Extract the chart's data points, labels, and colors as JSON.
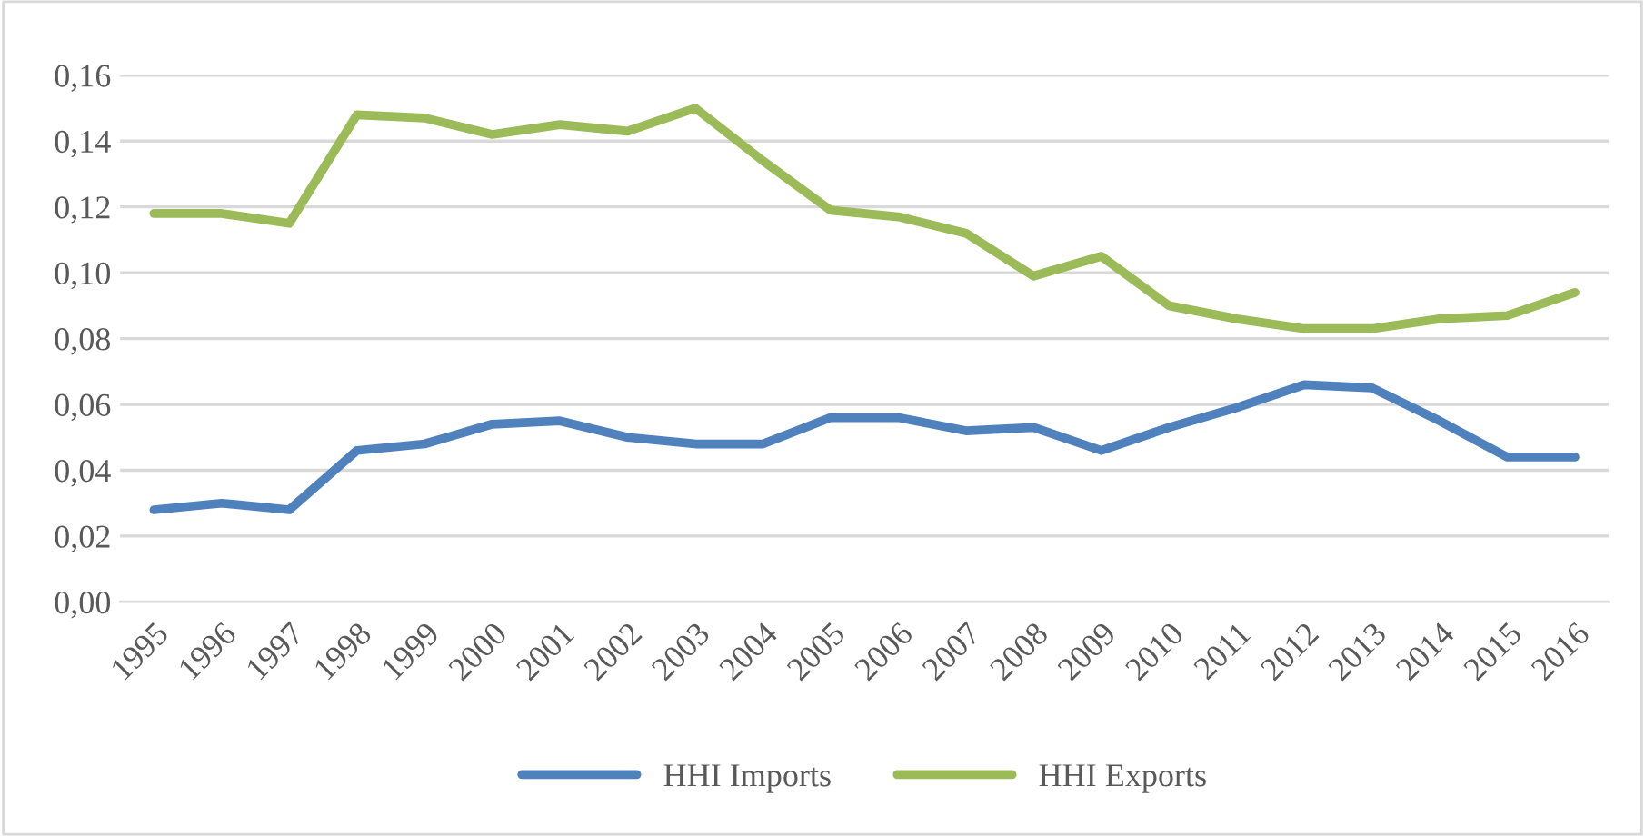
{
  "chart_data": {
    "type": "line",
    "categories": [
      "1995",
      "1996",
      "1997",
      "1998",
      "1999",
      "2000",
      "2001",
      "2002",
      "2003",
      "2004",
      "2005",
      "2006",
      "2007",
      "2008",
      "2009",
      "2010",
      "2011",
      "2012",
      "2013",
      "2014",
      "2015",
      "2016"
    ],
    "series": [
      {
        "name": "HHI Imports",
        "color": "#4f81bd",
        "values": [
          0.028,
          0.03,
          0.028,
          0.046,
          0.048,
          0.054,
          0.055,
          0.05,
          0.048,
          0.048,
          0.056,
          0.056,
          0.052,
          0.053,
          0.046,
          0.053,
          0.059,
          0.066,
          0.065,
          0.055,
          0.044,
          0.044
        ]
      },
      {
        "name": "HHI Exports",
        "color": "#9bbb59",
        "values": [
          0.118,
          0.118,
          0.115,
          0.148,
          0.147,
          0.142,
          0.145,
          0.143,
          0.15,
          0.134,
          0.119,
          0.117,
          0.112,
          0.099,
          0.105,
          0.09,
          0.086,
          0.083,
          0.083,
          0.086,
          0.087,
          0.094
        ]
      }
    ],
    "ylim": [
      0,
      0.16
    ],
    "yticks": [
      {
        "value": 0,
        "label": "0,00"
      },
      {
        "value": 0.02,
        "label": "0,02"
      },
      {
        "value": 0.04,
        "label": "0,04"
      },
      {
        "value": 0.06,
        "label": "0,06"
      },
      {
        "value": 0.08,
        "label": "0,08"
      },
      {
        "value": 0.1,
        "label": "0,10"
      },
      {
        "value": 0.12,
        "label": "0,12"
      },
      {
        "value": 0.14,
        "label": "0,14"
      },
      {
        "value": 0.16,
        "label": "0,16"
      }
    ],
    "grid": "y",
    "legend": "bottom",
    "line_style": "solid",
    "marker": "none"
  }
}
